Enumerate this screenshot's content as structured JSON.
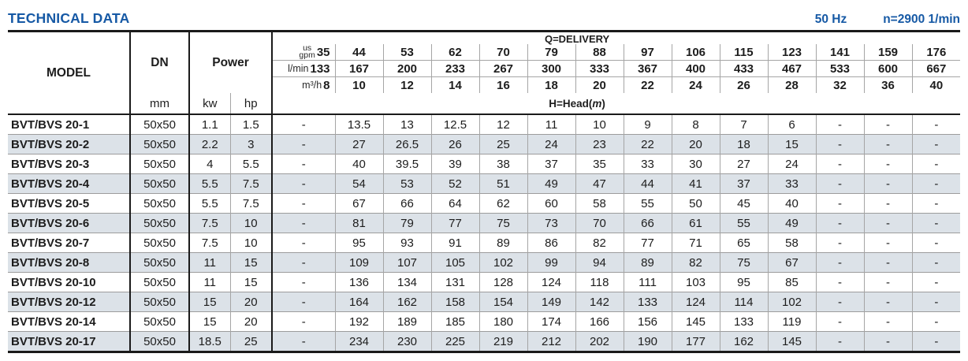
{
  "header": {
    "title": "TECHNICAL DATA",
    "frequency": "50 Hz",
    "speed": "n=2900 1/min"
  },
  "table": {
    "model_header": "MODEL",
    "dn_header": "DN",
    "dn_unit": "mm",
    "power_header": "Power",
    "kw_unit": "kw",
    "hp_unit": "hp",
    "delivery_header": "Q=DELIVERY",
    "head_label_parts": {
      "pre": "H=Head(",
      "m": "m",
      "post": ")"
    },
    "flow_units": {
      "us_gpm_l1": "us",
      "us_gpm_l2": "gpm",
      "l_min": "l/min",
      "m3_h": "m³/h"
    },
    "flow_rows": {
      "us_gpm": [
        "35",
        "44",
        "53",
        "62",
        "70",
        "79",
        "88",
        "97",
        "106",
        "115",
        "123",
        "141",
        "159",
        "176"
      ],
      "l_min": [
        "133",
        "167",
        "200",
        "233",
        "267",
        "300",
        "333",
        "367",
        "400",
        "433",
        "467",
        "533",
        "600",
        "667"
      ],
      "m3_h": [
        "8",
        "10",
        "12",
        "14",
        "16",
        "18",
        "20",
        "22",
        "24",
        "26",
        "28",
        "32",
        "36",
        "40"
      ]
    },
    "rows": [
      {
        "model": "BVT/BVS 20-1",
        "dn": "50x50",
        "kw": "1.1",
        "hp": "1.5",
        "head": [
          "-",
          "13.5",
          "13",
          "12.5",
          "12",
          "11",
          "10",
          "9",
          "8",
          "7",
          "6",
          "-",
          "-",
          "-"
        ]
      },
      {
        "model": "BVT/BVS 20-2",
        "dn": "50x50",
        "kw": "2.2",
        "hp": "3",
        "head": [
          "-",
          "27",
          "26.5",
          "26",
          "25",
          "24",
          "23",
          "22",
          "20",
          "18",
          "15",
          "-",
          "-",
          "-"
        ]
      },
      {
        "model": "BVT/BVS 20-3",
        "dn": "50x50",
        "kw": "4",
        "hp": "5.5",
        "head": [
          "-",
          "40",
          "39.5",
          "39",
          "38",
          "37",
          "35",
          "33",
          "30",
          "27",
          "24",
          "-",
          "-",
          "-"
        ]
      },
      {
        "model": "BVT/BVS 20-4",
        "dn": "50x50",
        "kw": "5.5",
        "hp": "7.5",
        "head": [
          "-",
          "54",
          "53",
          "52",
          "51",
          "49",
          "47",
          "44",
          "41",
          "37",
          "33",
          "-",
          "-",
          "-"
        ]
      },
      {
        "model": "BVT/BVS 20-5",
        "dn": "50x50",
        "kw": "5.5",
        "hp": "7.5",
        "head": [
          "-",
          "67",
          "66",
          "64",
          "62",
          "60",
          "58",
          "55",
          "50",
          "45",
          "40",
          "-",
          "-",
          "-"
        ]
      },
      {
        "model": "BVT/BVS 20-6",
        "dn": "50x50",
        "kw": "7.5",
        "hp": "10",
        "head": [
          "-",
          "81",
          "79",
          "77",
          "75",
          "73",
          "70",
          "66",
          "61",
          "55",
          "49",
          "-",
          "-",
          "-"
        ]
      },
      {
        "model": "BVT/BVS 20-7",
        "dn": "50x50",
        "kw": "7.5",
        "hp": "10",
        "head": [
          "-",
          "95",
          "93",
          "91",
          "89",
          "86",
          "82",
          "77",
          "71",
          "65",
          "58",
          "-",
          "-",
          "-"
        ]
      },
      {
        "model": "BVT/BVS 20-8",
        "dn": "50x50",
        "kw": "11",
        "hp": "15",
        "head": [
          "-",
          "109",
          "107",
          "105",
          "102",
          "99",
          "94",
          "89",
          "82",
          "75",
          "67",
          "-",
          "-",
          "-"
        ]
      },
      {
        "model": "BVT/BVS 20-10",
        "dn": "50x50",
        "kw": "11",
        "hp": "15",
        "head": [
          "-",
          "136",
          "134",
          "131",
          "128",
          "124",
          "118",
          "111",
          "103",
          "95",
          "85",
          "-",
          "-",
          "-"
        ]
      },
      {
        "model": "BVT/BVS 20-12",
        "dn": "50x50",
        "kw": "15",
        "hp": "20",
        "head": [
          "-",
          "164",
          "162",
          "158",
          "154",
          "149",
          "142",
          "133",
          "124",
          "114",
          "102",
          "-",
          "-",
          "-"
        ]
      },
      {
        "model": "BVT/BVS 20-14",
        "dn": "50x50",
        "kw": "15",
        "hp": "20",
        "head": [
          "-",
          "192",
          "189",
          "185",
          "180",
          "174",
          "166",
          "156",
          "145",
          "133",
          "119",
          "-",
          "-",
          "-"
        ]
      },
      {
        "model": "BVT/BVS 20-17",
        "dn": "50x50",
        "kw": "18.5",
        "hp": "25",
        "head": [
          "-",
          "234",
          "230",
          "225",
          "219",
          "212",
          "202",
          "190",
          "177",
          "162",
          "145",
          "-",
          "-",
          "-"
        ]
      }
    ]
  }
}
